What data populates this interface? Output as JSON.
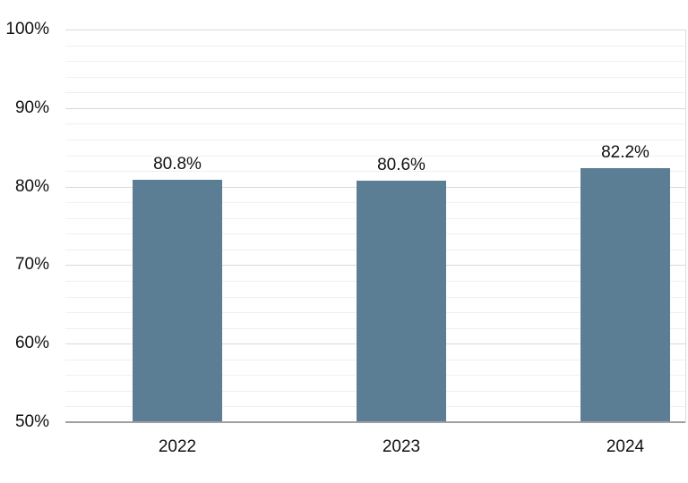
{
  "chart_data": {
    "type": "bar",
    "title": "",
    "xlabel": "",
    "ylabel": "",
    "categories": [
      "2022",
      "2023",
      "2024"
    ],
    "values": [
      80.8,
      80.6,
      82.2
    ],
    "data_labels": [
      "80.8%",
      "80.6%",
      "82.2%"
    ],
    "ylim": [
      50,
      100
    ],
    "y_major_step": 10,
    "y_minor_step": 2,
    "y_tick_labels": [
      "50%",
      "60%",
      "70%",
      "80%",
      "90%",
      "100%"
    ],
    "grid": "horizontal-major-and-minor",
    "legend_position": "none",
    "colors": {
      "bar_fill": "#5c7e94",
      "major_gridline": "#d9d9d9",
      "minor_gridline": "#f0f0f0",
      "axis_line": "#a0a0a0",
      "text": "#111111",
      "background": "#ffffff"
    }
  }
}
